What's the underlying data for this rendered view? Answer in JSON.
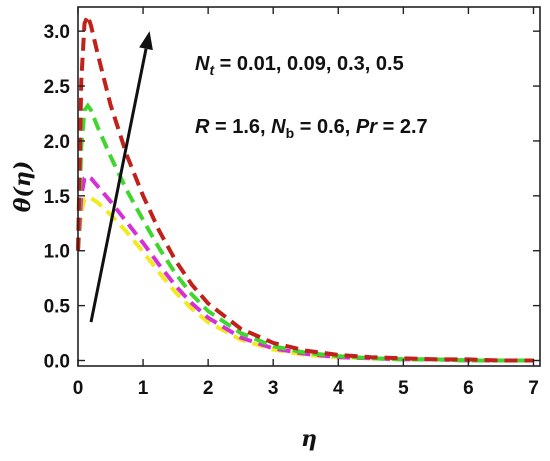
{
  "chart_data": {
    "type": "line",
    "xlabel": "η",
    "ylabel": "θ(η)",
    "xlim": [
      0,
      7.1
    ],
    "ylim": [
      -0.05,
      3.22
    ],
    "xticks": [
      0,
      1,
      2,
      3,
      4,
      5,
      6,
      7
    ],
    "yticks": [
      0.0,
      0.5,
      1.0,
      1.5,
      2.0,
      2.5,
      3.0
    ],
    "grid": false,
    "annotation": {
      "line1": {
        "var": "N",
        "sub": "t",
        "rest": " = 0.01,  0.09,  0.3,  0.5"
      },
      "line2": {
        "p1": "R",
        "p2": " = 1.6, ",
        "p3": "N",
        "p3sub": "b",
        "p4": " = 0.6, ",
        "p5": "Pr",
        "p6": " = 2.7"
      }
    },
    "arrow": {
      "from": [
        0.2,
        0.35
      ],
      "to": [
        1.1,
        3.0
      ]
    },
    "series": [
      {
        "color": "#f2ea1c",
        "x": [
          0,
          0.05,
          0.1,
          0.15,
          0.2,
          0.3,
          0.5,
          0.75,
          1.0,
          1.25,
          1.5,
          1.75,
          2.0,
          2.5,
          3.0,
          3.5,
          4.0,
          4.5,
          5.0,
          5.5,
          6.0,
          6.5,
          7.0
        ],
        "y": [
          1.0,
          1.35,
          1.47,
          1.49,
          1.48,
          1.44,
          1.33,
          1.17,
          0.99,
          0.8,
          0.62,
          0.47,
          0.35,
          0.19,
          0.1,
          0.05,
          0.03,
          0.02,
          0.01,
          0.01,
          0.0,
          0.0,
          0.0
        ]
      },
      {
        "color": "#d62fd6",
        "x": [
          0,
          0.05,
          0.1,
          0.15,
          0.2,
          0.3,
          0.5,
          0.75,
          1.0,
          1.25,
          1.5,
          1.75,
          2.0,
          2.5,
          3.0,
          3.5,
          4.0,
          4.5,
          5.0,
          5.5,
          6.0,
          6.5,
          7.0
        ],
        "y": [
          1.0,
          1.5,
          1.66,
          1.68,
          1.66,
          1.59,
          1.45,
          1.26,
          1.07,
          0.87,
          0.68,
          0.52,
          0.39,
          0.21,
          0.11,
          0.06,
          0.03,
          0.02,
          0.01,
          0.01,
          0.0,
          0.0,
          0.0
        ]
      },
      {
        "color": "#3fd62f",
        "x": [
          0,
          0.05,
          0.1,
          0.15,
          0.2,
          0.3,
          0.5,
          0.75,
          1.0,
          1.25,
          1.5,
          1.75,
          2.0,
          2.5,
          3.0,
          3.5,
          4.0,
          4.5,
          5.0,
          5.5,
          6.0,
          6.5,
          7.0
        ],
        "y": [
          1.0,
          1.95,
          2.28,
          2.32,
          2.28,
          2.13,
          1.86,
          1.55,
          1.28,
          1.02,
          0.79,
          0.6,
          0.45,
          0.25,
          0.13,
          0.07,
          0.04,
          0.02,
          0.01,
          0.01,
          0.0,
          0.0,
          0.0
        ]
      },
      {
        "color": "#c0211a",
        "x": [
          0,
          0.05,
          0.1,
          0.15,
          0.2,
          0.3,
          0.5,
          0.75,
          1.0,
          1.25,
          1.5,
          1.75,
          2.0,
          2.5,
          3.0,
          3.5,
          4.0,
          4.5,
          5.0,
          5.5,
          6.0,
          6.5,
          7.0
        ],
        "y": [
          1.0,
          2.55,
          3.07,
          3.14,
          3.05,
          2.8,
          2.33,
          1.87,
          1.5,
          1.18,
          0.91,
          0.69,
          0.52,
          0.29,
          0.16,
          0.09,
          0.05,
          0.03,
          0.02,
          0.01,
          0.01,
          0.0,
          0.0
        ]
      }
    ]
  }
}
